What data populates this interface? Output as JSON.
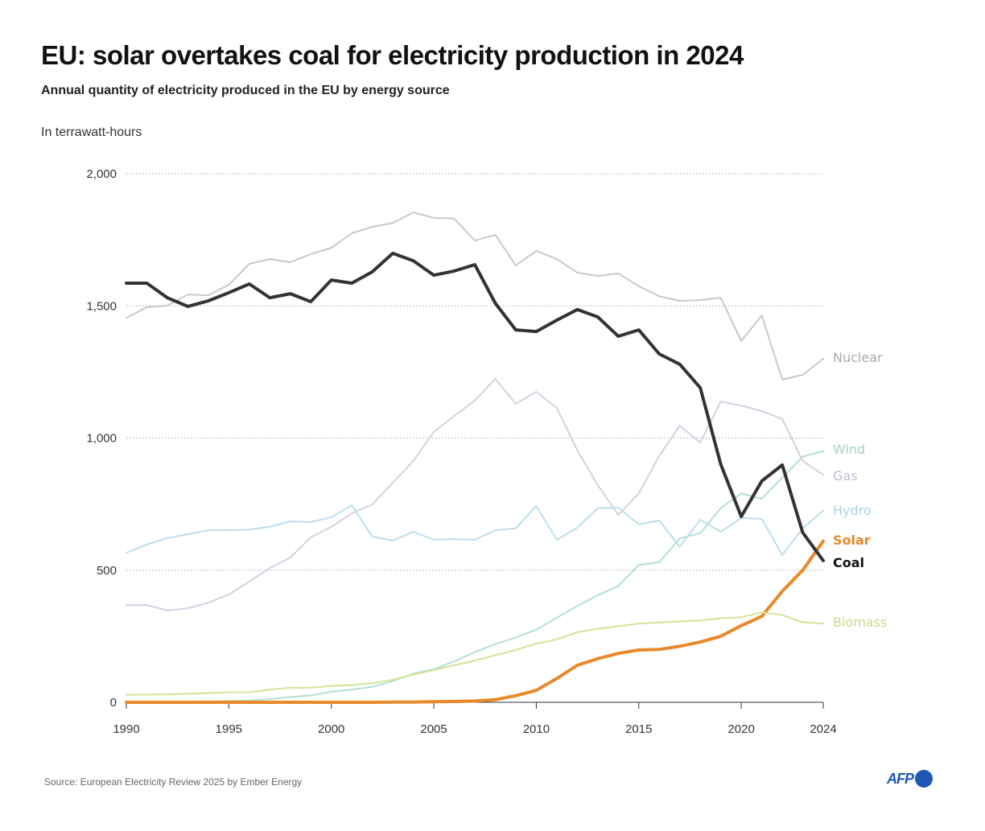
{
  "header": {
    "title": "EU: solar overtakes coal for electricity production in 2024",
    "subtitle": "Annual quantity of electricity produced in the EU by energy source",
    "unit": "In terrawatt-hours"
  },
  "footer": {
    "source": "Source: European Electricity Review 2025 by Ember Energy",
    "logo": "AFP",
    "logo_color": "#1f57b4"
  },
  "chart_data": {
    "type": "line",
    "title": "EU: solar overtakes coal for electricity production in 2024",
    "ylabel": "In terrawatt-hours",
    "xlim": [
      1990,
      2024
    ],
    "ylim": [
      0,
      2000
    ],
    "yticks": [
      0,
      500,
      1000,
      1500,
      2000
    ],
    "ytick_labels": [
      "0",
      "500",
      "1,000",
      "1,500",
      "2,000"
    ],
    "xticks": [
      1990,
      1995,
      2000,
      2005,
      2010,
      2015,
      2020,
      2024
    ],
    "xtick_labels": [
      "1990",
      "1995",
      "2000",
      "2005",
      "2010",
      "2015",
      "2020",
      "2024"
    ],
    "grid": "horizontal dotted",
    "legend": "direct labels at right end of lines",
    "x": [
      1990,
      1991,
      1992,
      1993,
      1994,
      1995,
      1996,
      1997,
      1998,
      1999,
      2000,
      2001,
      2002,
      2003,
      2004,
      2005,
      2006,
      2007,
      2008,
      2009,
      2010,
      2011,
      2012,
      2013,
      2014,
      2015,
      2016,
      2017,
      2018,
      2019,
      2020,
      2021,
      2022,
      2023,
      2024
    ],
    "series": [
      {
        "name": "Nuclear",
        "color": "#c9c9c9",
        "label_color": "#aaaaaa",
        "bold": false,
        "values": [
          1455,
          1495,
          1501,
          1543,
          1540,
          1580,
          1659,
          1677,
          1665,
          1696,
          1720,
          1775,
          1799,
          1814,
          1854,
          1833,
          1830,
          1747,
          1769,
          1653,
          1708,
          1677,
          1626,
          1613,
          1623,
          1574,
          1537,
          1519,
          1522,
          1531,
          1367,
          1464,
          1221,
          1239,
          1300
        ]
      },
      {
        "name": "Wind",
        "color": "#b3e0d5",
        "label_color": "#a3d4c8",
        "bold": false,
        "values": [
          1,
          2,
          2,
          3,
          4,
          5,
          7,
          12,
          20,
          26,
          40,
          48,
          58,
          80,
          108,
          125,
          155,
          190,
          220,
          245,
          275,
          320,
          365,
          405,
          440,
          520,
          530,
          620,
          640,
          735,
          790,
          770,
          850,
          930,
          950
        ]
      },
      {
        "name": "Gas",
        "color": "#d8cfe2",
        "label_color": "#c5b9d3",
        "bold": false,
        "values": [
          368,
          368,
          347,
          356,
          377,
          408,
          457,
          508,
          548,
          624,
          664,
          715,
          749,
          831,
          913,
          1023,
          1084,
          1142,
          1224,
          1129,
          1175,
          1114,
          953,
          822,
          709,
          791,
          932,
          1047,
          983,
          1138,
          1123,
          1102,
          1072,
          913,
          861
        ]
      },
      {
        "name": "Hydro",
        "color": "#bcdeec",
        "label_color": "#a9d3e6",
        "bold": false,
        "values": [
          566,
          597,
          621,
          636,
          651,
          651,
          654,
          664,
          685,
          682,
          700,
          746,
          627,
          612,
          645,
          615,
          618,
          615,
          651,
          658,
          743,
          615,
          661,
          734,
          737,
          673,
          688,
          588,
          691,
          645,
          697,
          694,
          557,
          658,
          725
        ]
      },
      {
        "name": "Solar",
        "color": "#e8892a",
        "label_color": "#e8892a",
        "bold": true,
        "values": [
          0,
          0,
          0,
          0,
          0,
          0,
          0,
          0,
          0,
          0,
          0,
          0,
          0,
          1,
          1,
          2,
          3,
          5,
          10,
          25,
          45,
          90,
          140,
          165,
          185,
          198,
          200,
          212,
          228,
          250,
          290,
          325,
          420,
          500,
          610
        ]
      },
      {
        "name": "Coal",
        "color": "#333333",
        "label_color": "#111111",
        "bold": true,
        "values": [
          1586,
          1586,
          1531,
          1498,
          1519,
          1550,
          1583,
          1531,
          1546,
          1516,
          1598,
          1586,
          1629,
          1699,
          1671,
          1616,
          1632,
          1656,
          1510,
          1409,
          1403,
          1446,
          1486,
          1458,
          1385,
          1409,
          1318,
          1279,
          1190,
          901,
          703,
          837,
          898,
          642,
          536
        ]
      },
      {
        "name": "Biomass",
        "color": "#d3e398",
        "label_color": "#c8da85",
        "bold": false,
        "values": [
          28,
          29,
          30,
          32,
          35,
          38,
          38,
          48,
          55,
          55,
          62,
          65,
          72,
          85,
          105,
          122,
          140,
          158,
          178,
          198,
          222,
          238,
          265,
          278,
          288,
          298,
          302,
          306,
          310,
          318,
          322,
          340,
          330,
          303,
          298
        ]
      }
    ]
  }
}
